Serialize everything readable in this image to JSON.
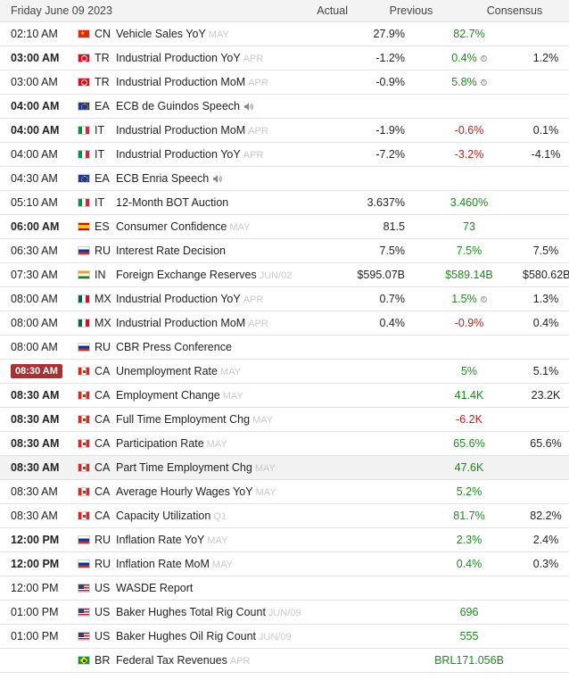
{
  "header": {
    "date": "Friday June 09 2023",
    "actual": "Actual",
    "previous": "Previous",
    "consensus": "Consensus"
  },
  "rows": [
    {
      "time": "02:10 AM",
      "bold": false,
      "live": false,
      "country": "CN",
      "flag": "flag-cn-icon",
      "event": "Vehicle Sales YoY",
      "period": "MAY",
      "speech": false,
      "actual": "27.9%",
      "previous": "82.7%",
      "prev_color": "pos",
      "prev_revised": false,
      "consensus": ""
    },
    {
      "time": "03:00 AM",
      "bold": true,
      "live": false,
      "country": "TR",
      "flag": "flag-tr-icon",
      "event": "Industrial Production YoY",
      "period": "APR",
      "speech": false,
      "actual": "-1.2%",
      "previous": "0.4%",
      "prev_color": "pos",
      "prev_revised": true,
      "consensus": "1.2%"
    },
    {
      "time": "03:00 AM",
      "bold": false,
      "live": false,
      "country": "TR",
      "flag": "flag-tr-icon",
      "event": "Industrial Production MoM",
      "period": "APR",
      "speech": false,
      "actual": "-0.9%",
      "previous": "5.8%",
      "prev_color": "pos",
      "prev_revised": true,
      "consensus": ""
    },
    {
      "time": "04:00 AM",
      "bold": true,
      "live": false,
      "country": "EA",
      "flag": "flag-ea-icon",
      "event": "ECB de Guindos Speech",
      "period": "",
      "speech": true,
      "actual": "",
      "previous": "",
      "prev_color": "",
      "prev_revised": false,
      "consensus": ""
    },
    {
      "time": "04:00 AM",
      "bold": true,
      "live": false,
      "country": "IT",
      "flag": "flag-it-icon",
      "event": "Industrial Production MoM",
      "period": "APR",
      "speech": false,
      "actual": "-1.9%",
      "previous": "-0.6%",
      "prev_color": "neg",
      "prev_revised": false,
      "consensus": "0.1%"
    },
    {
      "time": "04:00 AM",
      "bold": false,
      "live": false,
      "country": "IT",
      "flag": "flag-it-icon",
      "event": "Industrial Production YoY",
      "period": "APR",
      "speech": false,
      "actual": "-7.2%",
      "previous": "-3.2%",
      "prev_color": "neg",
      "prev_revised": false,
      "consensus": "-4.1%"
    },
    {
      "time": "04:30 AM",
      "bold": false,
      "live": false,
      "country": "EA",
      "flag": "flag-ea-icon",
      "event": "ECB Enria Speech",
      "period": "",
      "speech": true,
      "actual": "",
      "previous": "",
      "prev_color": "",
      "prev_revised": false,
      "consensus": ""
    },
    {
      "time": "05:10 AM",
      "bold": false,
      "live": false,
      "country": "IT",
      "flag": "flag-it-icon",
      "event": "12-Month BOT Auction",
      "period": "",
      "speech": false,
      "actual": "3.637%",
      "previous": "3.460%",
      "prev_color": "pos",
      "prev_revised": false,
      "consensus": ""
    },
    {
      "time": "06:00 AM",
      "bold": true,
      "live": false,
      "country": "ES",
      "flag": "flag-es-icon",
      "event": "Consumer Confidence",
      "period": "MAY",
      "speech": false,
      "actual": "81.5",
      "previous": "73",
      "prev_color": "pos",
      "prev_revised": false,
      "consensus": ""
    },
    {
      "time": "06:30 AM",
      "bold": false,
      "live": false,
      "country": "RU",
      "flag": "flag-ru-icon",
      "event": "Interest Rate Decision",
      "period": "",
      "speech": false,
      "actual": "7.5%",
      "previous": "7.5%",
      "prev_color": "pos",
      "prev_revised": false,
      "consensus": "7.5%"
    },
    {
      "time": "07:30 AM",
      "bold": false,
      "live": false,
      "country": "IN",
      "flag": "flag-in-icon",
      "event": "Foreign Exchange Reserves",
      "period": "JUN/02",
      "speech": false,
      "actual": "$595.07B",
      "previous": "$589.14B",
      "prev_color": "pos",
      "prev_revised": false,
      "consensus": "$580.62B"
    },
    {
      "time": "08:00 AM",
      "bold": false,
      "live": false,
      "country": "MX",
      "flag": "flag-mx-icon",
      "event": "Industrial Production YoY",
      "period": "APR",
      "speech": false,
      "actual": "0.7%",
      "previous": "1.5%",
      "prev_color": "pos",
      "prev_revised": true,
      "consensus": "1.3%"
    },
    {
      "time": "08:00 AM",
      "bold": false,
      "live": false,
      "country": "MX",
      "flag": "flag-mx-icon",
      "event": "Industrial Production MoM",
      "period": "APR",
      "speech": false,
      "actual": "0.4%",
      "previous": "-0.9%",
      "prev_color": "neg",
      "prev_revised": false,
      "consensus": "0.4%"
    },
    {
      "time": "08:00 AM",
      "bold": false,
      "live": false,
      "country": "RU",
      "flag": "flag-ru-icon",
      "event": "CBR Press Conference",
      "period": "",
      "speech": false,
      "actual": "",
      "previous": "",
      "prev_color": "",
      "prev_revised": false,
      "consensus": ""
    },
    {
      "time": "08:30 AM",
      "bold": true,
      "live": true,
      "country": "CA",
      "flag": "flag-ca-icon",
      "event": "Unemployment Rate",
      "period": "MAY",
      "speech": false,
      "actual": "",
      "previous": "5%",
      "prev_color": "pos",
      "prev_revised": false,
      "consensus": "5.1%"
    },
    {
      "time": "08:30 AM",
      "bold": true,
      "live": false,
      "country": "CA",
      "flag": "flag-ca-icon",
      "event": "Employment Change",
      "period": "MAY",
      "speech": false,
      "actual": "",
      "previous": "41.4K",
      "prev_color": "pos",
      "prev_revised": false,
      "consensus": "23.2K"
    },
    {
      "time": "08:30 AM",
      "bold": true,
      "live": false,
      "country": "CA",
      "flag": "flag-ca-icon",
      "event": "Full Time Employment Chg",
      "period": "MAY",
      "speech": false,
      "actual": "",
      "previous": "-6.2K",
      "prev_color": "neg",
      "prev_revised": false,
      "consensus": ""
    },
    {
      "time": "08:30 AM",
      "bold": true,
      "live": false,
      "country": "CA",
      "flag": "flag-ca-icon",
      "event": "Participation Rate",
      "period": "MAY",
      "speech": false,
      "actual": "",
      "previous": "65.6%",
      "prev_color": "pos",
      "prev_revised": false,
      "consensus": "65.6%"
    },
    {
      "time": "08:30 AM",
      "bold": true,
      "live": false,
      "country": "CA",
      "flag": "flag-ca-icon",
      "event": "Part Time Employment Chg",
      "period": "MAY",
      "speech": false,
      "actual": "",
      "previous": "47.6K",
      "prev_color": "pos",
      "prev_revised": false,
      "consensus": "",
      "highlight": true
    },
    {
      "time": "08:30 AM",
      "bold": false,
      "live": false,
      "country": "CA",
      "flag": "flag-ca-icon",
      "event": "Average Hourly Wages YoY",
      "period": "MAY",
      "speech": false,
      "actual": "",
      "previous": "5.2%",
      "prev_color": "pos",
      "prev_revised": false,
      "consensus": ""
    },
    {
      "time": "08:30 AM",
      "bold": false,
      "live": false,
      "country": "CA",
      "flag": "flag-ca-icon",
      "event": "Capacity Utilization",
      "period": "Q1",
      "speech": false,
      "actual": "",
      "previous": "81.7%",
      "prev_color": "pos",
      "prev_revised": false,
      "consensus": "82.2%"
    },
    {
      "time": "12:00 PM",
      "bold": true,
      "live": false,
      "country": "RU",
      "flag": "flag-ru-icon",
      "event": "Inflation Rate YoY",
      "period": "MAY",
      "speech": false,
      "actual": "",
      "previous": "2.3%",
      "prev_color": "pos",
      "prev_revised": false,
      "consensus": "2.4%"
    },
    {
      "time": "12:00 PM",
      "bold": true,
      "live": false,
      "country": "RU",
      "flag": "flag-ru-icon",
      "event": "Inflation Rate MoM",
      "period": "MAY",
      "speech": false,
      "actual": "",
      "previous": "0.4%",
      "prev_color": "pos",
      "prev_revised": false,
      "consensus": "0.3%"
    },
    {
      "time": "12:00 PM",
      "bold": false,
      "live": false,
      "country": "US",
      "flag": "flag-us-icon",
      "event": "WASDE Report",
      "period": "",
      "speech": false,
      "actual": "",
      "previous": "",
      "prev_color": "",
      "prev_revised": false,
      "consensus": ""
    },
    {
      "time": "01:00 PM",
      "bold": false,
      "live": false,
      "country": "US",
      "flag": "flag-us-icon",
      "event": "Baker Hughes Total Rig Count",
      "period": "JUN/09",
      "speech": false,
      "actual": "",
      "previous": "696",
      "prev_color": "pos",
      "prev_revised": false,
      "consensus": ""
    },
    {
      "time": "01:00 PM",
      "bold": false,
      "live": false,
      "country": "US",
      "flag": "flag-us-icon",
      "event": "Baker Hughes Oil Rig Count",
      "period": "JUN/09",
      "speech": false,
      "actual": "",
      "previous": "555",
      "prev_color": "pos",
      "prev_revised": false,
      "consensus": ""
    },
    {
      "time": "",
      "bold": false,
      "live": false,
      "country": "BR",
      "flag": "flag-br-icon",
      "event": "Federal Tax Revenues",
      "period": "APR",
      "speech": false,
      "actual": "",
      "previous": "BRL171.056B",
      "prev_color": "pos",
      "prev_revised": false,
      "consensus": ""
    }
  ]
}
